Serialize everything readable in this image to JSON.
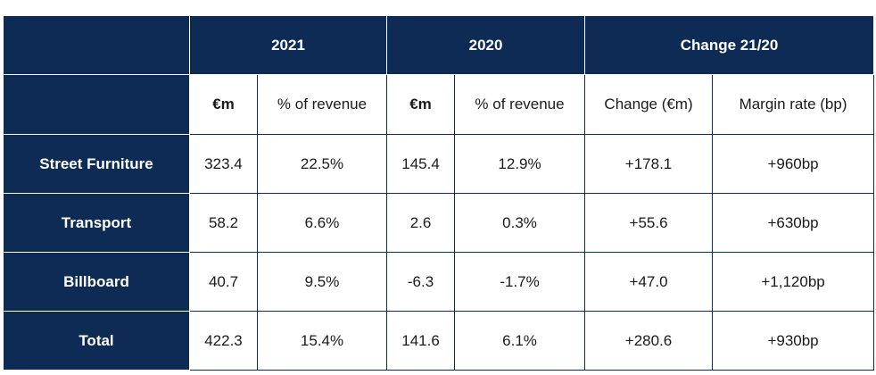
{
  "table": {
    "header_row1": {
      "blank": "",
      "group_2021": "2021",
      "group_2020": "2020",
      "group_change": "Change 21/20"
    },
    "header_row2": {
      "blank": "",
      "col_2021_em": "€m",
      "col_2021_pct": "% of revenue",
      "col_2020_em": "€m",
      "col_2020_pct": "% of revenue",
      "col_change_em": "Change (€m)",
      "col_margin": "Margin rate (bp)"
    },
    "rows": [
      {
        "label": "Street Furniture",
        "em_2021": "323.4",
        "pct_2021": "22.5%",
        "em_2020": "145.4",
        "pct_2020": "12.9%",
        "change": "+178.1",
        "margin": "+960bp"
      },
      {
        "label": "Transport",
        "em_2021": "58.2",
        "pct_2021": "6.6%",
        "em_2020": "2.6",
        "pct_2020": "0.3%",
        "change": "+55.6",
        "margin": "+630bp"
      },
      {
        "label": "Billboard",
        "em_2021": "40.7",
        "pct_2021": "9.5%",
        "em_2020": "-6.3",
        "pct_2020": "-1.7%",
        "change": "+47.0",
        "margin": "+1,120bp"
      },
      {
        "label": "Total",
        "em_2021": "422.3",
        "pct_2021": "15.4%",
        "em_2020": "141.6",
        "pct_2020": "6.1%",
        "change": "+280.6",
        "margin": "+930bp"
      }
    ],
    "colors": {
      "header_bg": "#0d2b55",
      "header_text": "#ffffff",
      "cell_bg": "#ffffff",
      "cell_text": "#1a1a1a"
    }
  }
}
